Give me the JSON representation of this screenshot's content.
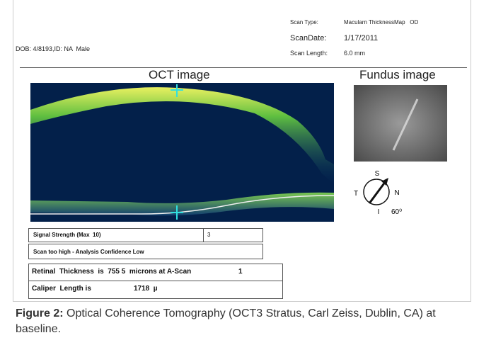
{
  "header": {
    "dob": "DOB: 4/8193,ID: NA  Male",
    "scan_type_label": "Scan Type:",
    "scan_type": "Macularn ThicknessMap   OD",
    "scan_date_label": "ScanDate:",
    "scan_date": "1/17/2011",
    "scan_length_label": "Scan Length:",
    "scan_length": "6.0 mm"
  },
  "oct_label": "OCT image",
  "fundus_label": "Fundus image",
  "compass": {
    "s": "S",
    "t": "T",
    "n": "N",
    "i": "I",
    "angle": "60⁰"
  },
  "table": {
    "rows": [
      [
        "Signal Strength (Max  10)",
        "3"
      ],
      [
        "Scan too high - Analysis Confidence Low"
      ],
      [
        "Retinal  Thickness  is  755 5  microns at A-Scan",
        "1"
      ],
      [
        "Caliper  Length is",
        "1718  µ"
      ]
    ]
  },
  "caption": {
    "label": "Figure 2:",
    "text": " Optical Coherence Tomography (OCT3 Stratus, Carl Zeiss, Dublin, CA) at baseline."
  }
}
